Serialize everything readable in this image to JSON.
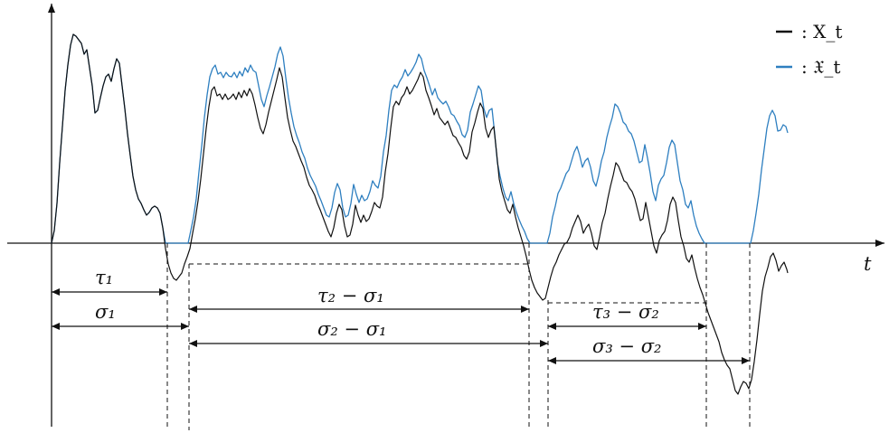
{
  "legend": {
    "black_symbol": "—",
    "black_label": ": X_t",
    "blue_symbol": "—",
    "blue_label": ": 𝔛_t",
    "black_color": "#111111",
    "blue_color": "#2e7fc0"
  },
  "axis": {
    "x_label": "t"
  },
  "intervals": [
    {
      "label": "τ₁",
      "sub": "1"
    },
    {
      "label": "σ₁"
    },
    {
      "label": "τ₂ − σ₁"
    },
    {
      "label": "σ₂ − σ₁"
    },
    {
      "label": "τ₃ − σ₂"
    },
    {
      "label": "σ₃ − σ₂"
    }
  ]
}
